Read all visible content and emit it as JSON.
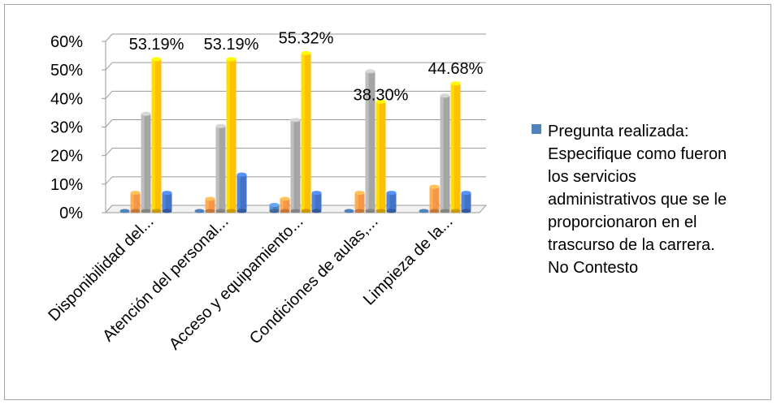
{
  "chart_data": {
    "type": "bar",
    "categories": [
      "Disponibilidad del...",
      "Atención del personal...",
      "Acceso y equipamiento...",
      "Condiciones de aulas,...",
      "Limpieza de la..."
    ],
    "series": [
      {
        "color": "#4f81bd",
        "values": [
          0,
          0,
          2.13,
          0,
          0
        ]
      },
      {
        "color": "#f79646",
        "values": [
          6.38,
          4.26,
          4.26,
          6.38,
          8.51
        ]
      },
      {
        "color": "#a5a5a5",
        "values": [
          34.04,
          29.79,
          31.91,
          48.94,
          40.43
        ]
      },
      {
        "color": "#ffc000",
        "values": [
          53.19,
          53.19,
          55.32,
          38.3,
          44.68
        ]
      },
      {
        "color": "#4472c4",
        "values": [
          6.38,
          12.77,
          6.38,
          6.38,
          6.38
        ]
      }
    ],
    "data_labels": [
      "53.19%",
      "53.19%",
      "55.32%",
      "38.30%",
      "44.68%"
    ],
    "ylim": [
      0,
      60
    ],
    "yticks": [
      "0%",
      "10%",
      "20%",
      "30%",
      "40%",
      "50%",
      "60%"
    ],
    "grid": true,
    "legend_position": "right",
    "legend": {
      "color": "#4f81bd",
      "label": "Pregunta realizada:\nEspecifique como fueron\nlos servicios\nadministrativos que se le\nproporcionaron en el\ntrascurso de la carrera.\nNo Contesto"
    }
  }
}
